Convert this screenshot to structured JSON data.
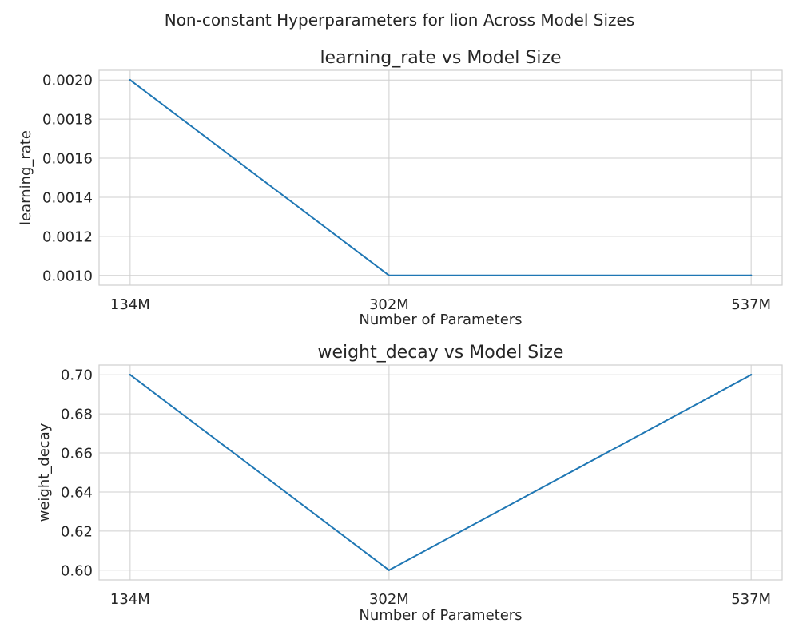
{
  "figure": {
    "suptitle": "Non-constant Hyperparameters for lion Across Model Sizes"
  },
  "colors": {
    "line": "#1f77b4",
    "grid": "#cfcfcf",
    "text": "#262626",
    "background": "#ffffff"
  },
  "chart_data": [
    {
      "type": "line",
      "title": "learning_rate vs Model Size",
      "xlabel": "Number of Parameters",
      "ylabel": "learning_rate",
      "x_scale": "linear",
      "x": [
        134,
        302,
        537
      ],
      "x_unit": "millions of parameters",
      "x_tick_labels": [
        "134M",
        "302M",
        "537M"
      ],
      "values": [
        0.002,
        0.001,
        0.001
      ],
      "ylim": [
        0.00095,
        0.00205
      ],
      "y_ticks": [
        "0.0010",
        "0.0012",
        "0.0014",
        "0.0016",
        "0.0018",
        "0.0020"
      ],
      "grid": true,
      "legend": "none"
    },
    {
      "type": "line",
      "title": "weight_decay vs Model Size",
      "xlabel": "Number of Parameters",
      "ylabel": "weight_decay",
      "x_scale": "linear",
      "x": [
        134,
        302,
        537
      ],
      "x_unit": "millions of parameters",
      "x_tick_labels": [
        "134M",
        "302M",
        "537M"
      ],
      "values": [
        0.7,
        0.6,
        0.7
      ],
      "ylim": [
        0.595,
        0.705
      ],
      "y_ticks": [
        "0.60",
        "0.62",
        "0.64",
        "0.66",
        "0.68",
        "0.70"
      ],
      "grid": true,
      "legend": "none"
    }
  ]
}
